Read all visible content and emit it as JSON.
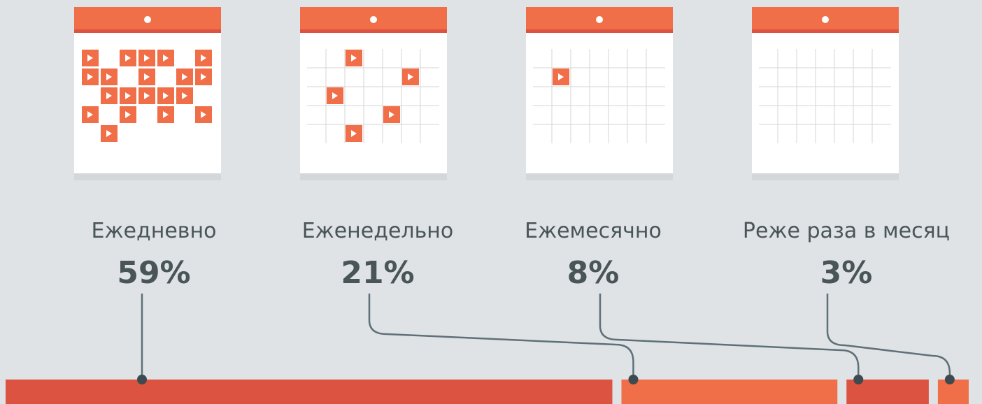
{
  "chart_data": {
    "type": "bar",
    "categories": [
      "Ежедневно",
      "Еженедельно",
      "Ежемесячно",
      "Реже раза в месяц"
    ],
    "values": [
      59,
      21,
      8,
      3
    ],
    "value_labels": [
      "59%",
      "21%",
      "8%",
      "3%"
    ],
    "colors": [
      "#dd5341",
      "#f06e48",
      "#dd5341",
      "#f06e48"
    ]
  }
}
